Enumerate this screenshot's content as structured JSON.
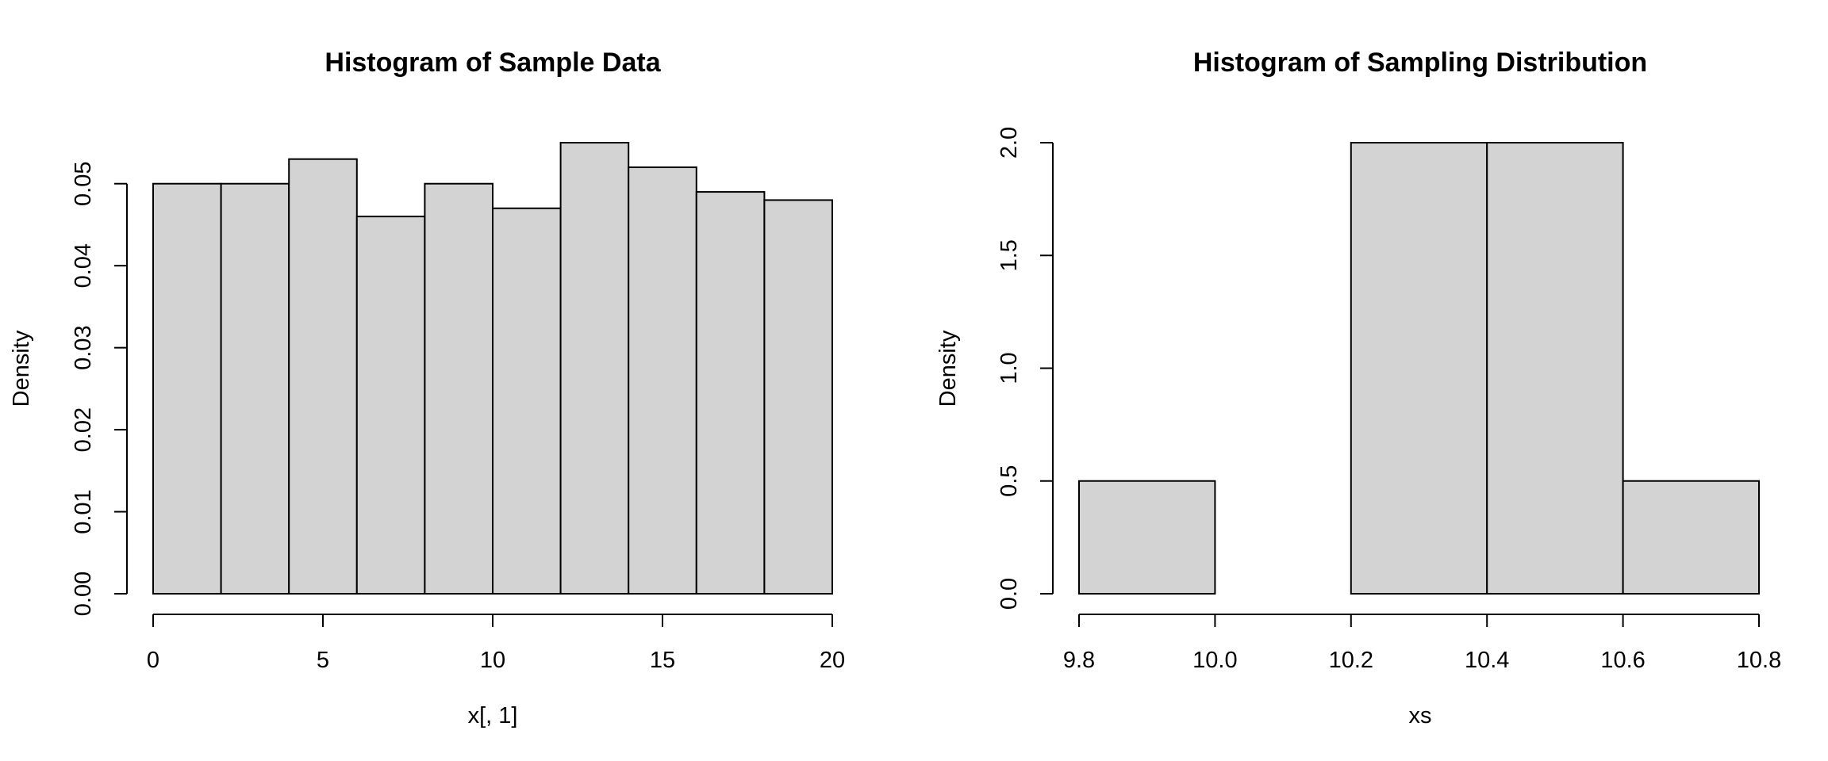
{
  "colors": {
    "bar_fill": "#d3d3d3",
    "bar_stroke": "#000000",
    "background": "#ffffff",
    "text": "#000000"
  },
  "chart_data": [
    {
      "type": "bar",
      "title": "Histogram of Sample Data",
      "xlabel": "x[, 1]",
      "ylabel": "Density",
      "bin_edges": [
        0,
        2,
        4,
        6,
        8,
        10,
        12,
        14,
        16,
        18,
        20
      ],
      "values": [
        0.05,
        0.05,
        0.053,
        0.046,
        0.05,
        0.047,
        0.055,
        0.052,
        0.049,
        0.048
      ],
      "xlim": [
        0,
        20
      ],
      "ylim": [
        0,
        0.055
      ],
      "x_ticks": [
        0,
        5,
        10,
        15,
        20
      ],
      "x_tick_labels": [
        "0",
        "5",
        "10",
        "15",
        "20"
      ],
      "y_ticks": [
        0,
        0.01,
        0.02,
        0.03,
        0.04,
        0.05
      ],
      "y_tick_labels": [
        "0.00",
        "0.01",
        "0.02",
        "0.03",
        "0.04",
        "0.05"
      ],
      "grid": false
    },
    {
      "type": "bar",
      "title": "Histogram of Sampling Distribution",
      "xlabel": "xs",
      "ylabel": "Density",
      "bin_edges": [
        9.8,
        10.0,
        10.2,
        10.4,
        10.6,
        10.8
      ],
      "values": [
        0.5,
        0.0,
        2.0,
        2.0,
        0.5
      ],
      "xlim": [
        9.8,
        10.8
      ],
      "ylim": [
        0,
        2.0
      ],
      "x_ticks": [
        9.8,
        10.0,
        10.2,
        10.4,
        10.6,
        10.8
      ],
      "x_tick_labels": [
        "9.8",
        "10.0",
        "10.2",
        "10.4",
        "10.6",
        "10.8"
      ],
      "y_ticks": [
        0,
        0.5,
        1.0,
        1.5,
        2.0
      ],
      "y_tick_labels": [
        "0.0",
        "0.5",
        "1.0",
        "1.5",
        "2.0"
      ],
      "grid": false
    }
  ]
}
